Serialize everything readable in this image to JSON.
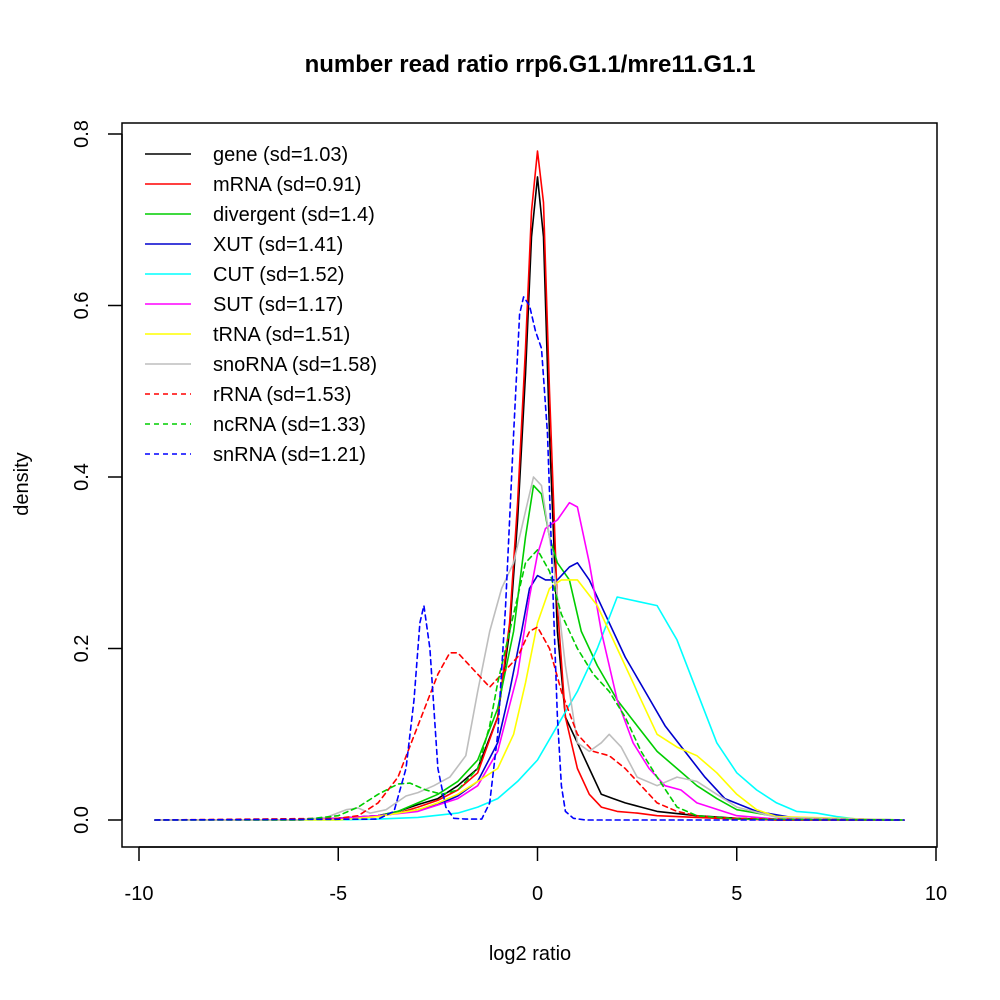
{
  "chart_data": {
    "type": "line",
    "title": "number read ratio rrp6.G1.1/mre11.G1.1",
    "xlabel": "log2 ratio",
    "ylabel": "density",
    "xlim": [
      -10,
      10
    ],
    "ylim": [
      0,
      0.8
    ],
    "x_ticks": [
      -10,
      -5,
      0,
      5,
      10
    ],
    "x_tick_labels": [
      "-10",
      "-5",
      "0",
      "5",
      "10"
    ],
    "y_ticks": [
      0,
      0.2,
      0.4,
      0.6,
      0.8
    ],
    "y_tick_labels": [
      "0.0",
      "0.2",
      "0.4",
      "0.6",
      "0.8"
    ],
    "legend_position": "top-left",
    "series": [
      {
        "name": "gene (sd=1.03)",
        "color": "#000000",
        "dash": false,
        "x": [
          -9.6,
          -6,
          -5,
          -4,
          -3.5,
          -3,
          -2.5,
          -2,
          -1.5,
          -1,
          -0.7,
          -0.5,
          -0.3,
          -0.15,
          0,
          0.15,
          0.3,
          0.5,
          0.7,
          1,
          1.3,
          1.6,
          1.9,
          2.2,
          2.6,
          3,
          4,
          5,
          6,
          9.2
        ],
        "y": [
          0,
          0,
          0.002,
          0.005,
          0.01,
          0.018,
          0.025,
          0.04,
          0.06,
          0.12,
          0.22,
          0.35,
          0.52,
          0.68,
          0.75,
          0.68,
          0.45,
          0.22,
          0.12,
          0.09,
          0.06,
          0.03,
          0.025,
          0.02,
          0.015,
          0.01,
          0.005,
          0.002,
          0,
          0
        ]
      },
      {
        "name": "mRNA (sd=0.91)",
        "color": "#ff0000",
        "dash": false,
        "x": [
          -9.6,
          -6,
          -5,
          -4,
          -3.5,
          -3,
          -2.5,
          -2,
          -1.5,
          -1,
          -0.7,
          -0.5,
          -0.3,
          -0.15,
          0,
          0.15,
          0.3,
          0.5,
          0.7,
          1,
          1.3,
          1.6,
          2,
          2.5,
          3,
          4,
          5,
          6,
          9.2
        ],
        "y": [
          0,
          0,
          0.002,
          0.004,
          0.008,
          0.015,
          0.023,
          0.035,
          0.055,
          0.12,
          0.23,
          0.37,
          0.55,
          0.71,
          0.78,
          0.72,
          0.5,
          0.25,
          0.12,
          0.06,
          0.03,
          0.015,
          0.01,
          0.008,
          0.005,
          0.003,
          0.001,
          0,
          0
        ]
      },
      {
        "name": "divergent (sd=1.4)",
        "color": "#00cd00",
        "dash": false,
        "x": [
          -9.6,
          -6,
          -5,
          -4,
          -3.5,
          -3,
          -2.5,
          -2,
          -1.5,
          -1,
          -0.6,
          -0.3,
          -0.1,
          0.1,
          0.3,
          0.5,
          0.8,
          1.1,
          1.5,
          2,
          2.5,
          3,
          3.5,
          4,
          4.5,
          5,
          6,
          7,
          9.2
        ],
        "y": [
          0,
          0,
          0.002,
          0.005,
          0.01,
          0.02,
          0.03,
          0.045,
          0.07,
          0.13,
          0.22,
          0.33,
          0.39,
          0.38,
          0.33,
          0.3,
          0.28,
          0.22,
          0.18,
          0.14,
          0.11,
          0.08,
          0.06,
          0.04,
          0.025,
          0.012,
          0.004,
          0.001,
          0
        ]
      },
      {
        "name": "XUT (sd=1.41)",
        "color": "#0000cd",
        "dash": false,
        "x": [
          -9.6,
          -6,
          -5,
          -4,
          -3.5,
          -3,
          -2.5,
          -2,
          -1.5,
          -1,
          -0.7,
          -0.4,
          -0.2,
          0,
          0.2,
          0.5,
          0.8,
          1,
          1.3,
          1.7,
          2.2,
          2.7,
          3.2,
          3.7,
          4.2,
          4.7,
          5.5,
          6.5,
          9.2
        ],
        "y": [
          0,
          0,
          0.002,
          0.005,
          0.008,
          0.012,
          0.018,
          0.028,
          0.045,
          0.09,
          0.15,
          0.22,
          0.27,
          0.285,
          0.28,
          0.28,
          0.295,
          0.3,
          0.28,
          0.24,
          0.19,
          0.15,
          0.11,
          0.08,
          0.05,
          0.025,
          0.01,
          0.002,
          0
        ]
      },
      {
        "name": "CUT (sd=1.52)",
        "color": "#00ffff",
        "dash": false,
        "x": [
          -9.6,
          -5,
          -4,
          -3,
          -2,
          -1.5,
          -1,
          -0.5,
          0,
          0.5,
          1,
          1.5,
          2,
          2.5,
          3,
          3.5,
          4,
          4.5,
          5,
          5.5,
          6,
          6.5,
          7,
          7.5,
          8,
          9.2
        ],
        "y": [
          0,
          0,
          0.001,
          0.003,
          0.008,
          0.015,
          0.025,
          0.045,
          0.07,
          0.11,
          0.15,
          0.2,
          0.26,
          0.255,
          0.25,
          0.21,
          0.15,
          0.09,
          0.055,
          0.035,
          0.02,
          0.01,
          0.008,
          0.004,
          0.001,
          0
        ]
      },
      {
        "name": "SUT (sd=1.17)",
        "color": "#ff00ff",
        "dash": false,
        "x": [
          -9.6,
          -6,
          -5,
          -4,
          -3,
          -2,
          -1.5,
          -1,
          -0.5,
          -0.2,
          0,
          0.2,
          0.5,
          0.8,
          1,
          1.3,
          1.6,
          2,
          2.4,
          2.8,
          3.2,
          3.6,
          4,
          5,
          6,
          9.2
        ],
        "y": [
          0,
          0,
          0.002,
          0.005,
          0.01,
          0.025,
          0.04,
          0.08,
          0.17,
          0.26,
          0.31,
          0.34,
          0.35,
          0.37,
          0.365,
          0.3,
          0.22,
          0.14,
          0.09,
          0.06,
          0.04,
          0.035,
          0.02,
          0.005,
          0.001,
          0
        ]
      },
      {
        "name": "tRNA (sd=1.51)",
        "color": "#ffff00",
        "dash": false,
        "x": [
          -9.6,
          -5,
          -4,
          -3.5,
          -3,
          -2.5,
          -2,
          -1.5,
          -1,
          -0.6,
          -0.3,
          0,
          0.3,
          0.6,
          1,
          1.5,
          2,
          2.5,
          3,
          3.5,
          4,
          4.5,
          5,
          5.5,
          6,
          9.2
        ],
        "y": [
          0,
          0,
          0.004,
          0.008,
          0.012,
          0.02,
          0.03,
          0.045,
          0.06,
          0.1,
          0.16,
          0.23,
          0.27,
          0.28,
          0.28,
          0.25,
          0.2,
          0.15,
          0.1,
          0.085,
          0.075,
          0.055,
          0.03,
          0.012,
          0.004,
          0
        ]
      },
      {
        "name": "snoRNA (sd=1.58)",
        "color": "#bebebe",
        "dash": false,
        "x": [
          -9.6,
          -6,
          -5.3,
          -4.8,
          -4.5,
          -4.2,
          -3.8,
          -3.3,
          -3,
          -2.6,
          -2.2,
          -1.8,
          -1.5,
          -1.2,
          -0.9,
          -0.6,
          -0.3,
          -0.1,
          0.1,
          0.4,
          0.7,
          1,
          1.3,
          1.6,
          1.8,
          2.1,
          2.5,
          3,
          3.5,
          4,
          4.5,
          5,
          6,
          9.2
        ],
        "y": [
          0,
          0,
          0.003,
          0.012,
          0.014,
          0.008,
          0.012,
          0.028,
          0.032,
          0.04,
          0.05,
          0.075,
          0.15,
          0.22,
          0.27,
          0.3,
          0.36,
          0.4,
          0.39,
          0.3,
          0.18,
          0.09,
          0.08,
          0.09,
          0.1,
          0.085,
          0.05,
          0.04,
          0.05,
          0.045,
          0.03,
          0.015,
          0.003,
          0
        ]
      },
      {
        "name": "rRNA (sd=1.53)",
        "color": "#ff0000",
        "dash": true,
        "x": [
          -9.6,
          -5,
          -4.5,
          -4,
          -3.5,
          -3,
          -2.5,
          -2.2,
          -2,
          -1.5,
          -1.2,
          -1,
          -0.5,
          -0.2,
          0,
          0.3,
          0.6,
          1,
          1.4,
          1.8,
          2.2,
          2.6,
          3,
          3.5,
          4,
          4.5,
          5,
          6,
          9.2
        ],
        "y": [
          0,
          0.002,
          0.005,
          0.02,
          0.05,
          0.11,
          0.17,
          0.195,
          0.195,
          0.17,
          0.155,
          0.165,
          0.19,
          0.22,
          0.225,
          0.2,
          0.15,
          0.1,
          0.08,
          0.075,
          0.06,
          0.04,
          0.02,
          0.01,
          0.005,
          0.003,
          0.002,
          0.001,
          0
        ]
      },
      {
        "name": "ncRNA (sd=1.33)",
        "color": "#00cd00",
        "dash": true,
        "x": [
          -9.6,
          -6,
          -5,
          -4.5,
          -4,
          -3.5,
          -3.2,
          -2.8,
          -2.4,
          -2,
          -1.5,
          -1.2,
          -1,
          -0.6,
          -0.3,
          0,
          0.3,
          0.6,
          1,
          1.4,
          1.8,
          2.2,
          2.6,
          3,
          3.5,
          4,
          5,
          9.2
        ],
        "y": [
          0,
          0,
          0.005,
          0.015,
          0.03,
          0.042,
          0.043,
          0.035,
          0.03,
          0.035,
          0.06,
          0.11,
          0.16,
          0.24,
          0.3,
          0.315,
          0.29,
          0.24,
          0.2,
          0.17,
          0.15,
          0.12,
          0.08,
          0.05,
          0.015,
          0.005,
          0.001,
          0
        ]
      },
      {
        "name": "snRNA (sd=1.21)",
        "color": "#0000ff",
        "dash": true,
        "x": [
          -9.6,
          -4,
          -3.6,
          -3.3,
          -3.1,
          -2.95,
          -2.85,
          -2.7,
          -2.5,
          -2.3,
          -2.1,
          -1.8,
          -1.4,
          -1.2,
          -1,
          -0.8,
          -0.6,
          -0.45,
          -0.35,
          -0.2,
          -0.05,
          0.1,
          0.25,
          0.4,
          0.5,
          0.6,
          0.7,
          0.9,
          1.2,
          9.2
        ],
        "y": [
          0,
          0.001,
          0.01,
          0.06,
          0.14,
          0.23,
          0.25,
          0.2,
          0.06,
          0.015,
          0.002,
          0.001,
          0.001,
          0.02,
          0.1,
          0.25,
          0.45,
          0.59,
          0.61,
          0.6,
          0.57,
          0.55,
          0.45,
          0.25,
          0.12,
          0.04,
          0.01,
          0.002,
          0,
          0
        ]
      }
    ]
  }
}
